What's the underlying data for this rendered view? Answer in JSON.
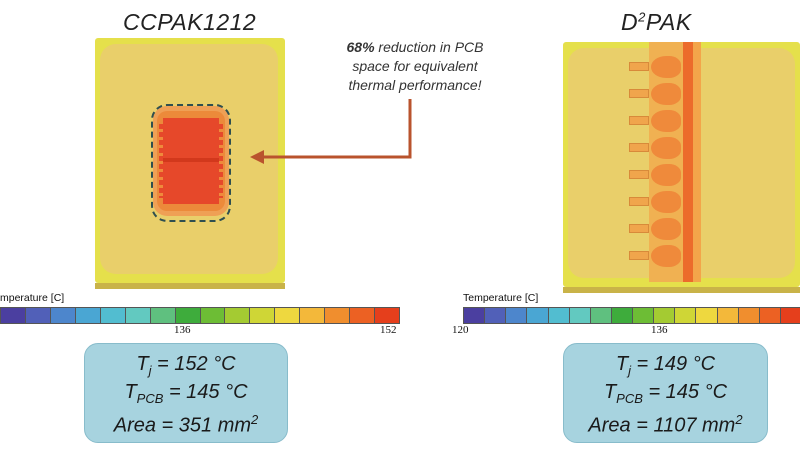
{
  "left": {
    "title": "CCPAK1212",
    "legend_label": "mperature [C]",
    "tick_mid": "136",
    "tick_max": "152",
    "stats": {
      "tj": "T",
      "tj_sub": "j",
      "tj_val": " = 152 °C",
      "tpcb": "T",
      "tpcb_sub": "PCB",
      "tpcb_val": " = 145 °C",
      "area": "Area = 351 mm",
      "area_sup": "2"
    }
  },
  "right": {
    "title_prefix": "D",
    "title_sup": "2",
    "title_suffix": "PAK",
    "legend_label": "Temperature [C]",
    "tick_min": "120",
    "tick_mid": "136",
    "stats": {
      "tj": "T",
      "tj_sub": "j",
      "tj_val": " = 149 °C",
      "tpcb": "T",
      "tpcb_sub": "PCB",
      "tpcb_val": " = 145 °C",
      "area": "Area = 1107 mm",
      "area_sup": "2"
    }
  },
  "note": {
    "highlight": "68%",
    "line1_rest": " reduction in PCB",
    "line2": "space for equivalent",
    "line3": "thermal performance!"
  },
  "colors": {
    "board": "#e6e14a",
    "board_inner": "#e8d168",
    "hot": "#e9471f",
    "arrow": "#b9532d",
    "box": "#a7d3df"
  },
  "colorscale": [
    "#4b3fa0",
    "#5160b8",
    "#4d86cc",
    "#4aa6d3",
    "#52bdd0",
    "#62c9c0",
    "#5fc07f",
    "#3eac3c",
    "#6dbd35",
    "#a4cb32",
    "#cfd636",
    "#eed83f",
    "#f3b83a",
    "#f08e2e",
    "#ec6123",
    "#e53f1c"
  ]
}
